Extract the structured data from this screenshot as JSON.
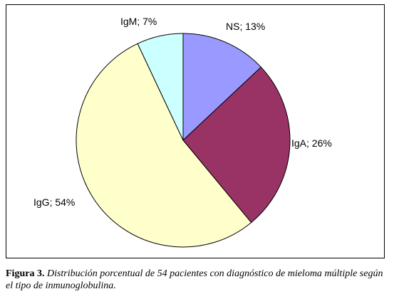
{
  "chart_data": {
    "type": "pie",
    "title": "",
    "slices": [
      {
        "label": "NS; 13%",
        "name": "NS",
        "value": 13,
        "color": "#9999ff"
      },
      {
        "label": "IgA; 26%",
        "name": "IgA",
        "value": 26,
        "color": "#993366"
      },
      {
        "label": "IgG; 54%",
        "name": "IgG",
        "value": 54,
        "color": "#ffffcc"
      },
      {
        "label": "IgM; 7%",
        "name": "IgM",
        "value": 7,
        "color": "#ccffff"
      }
    ],
    "start_angle": "12 o'clock",
    "direction": "clockwise",
    "border_color": "#000000"
  },
  "caption": {
    "label": "Figura 3.",
    "text": "Distribución porcentual de 54 pacientes con diagnóstico de mieloma múltiple según el tipo de inmunoglobulina."
  }
}
